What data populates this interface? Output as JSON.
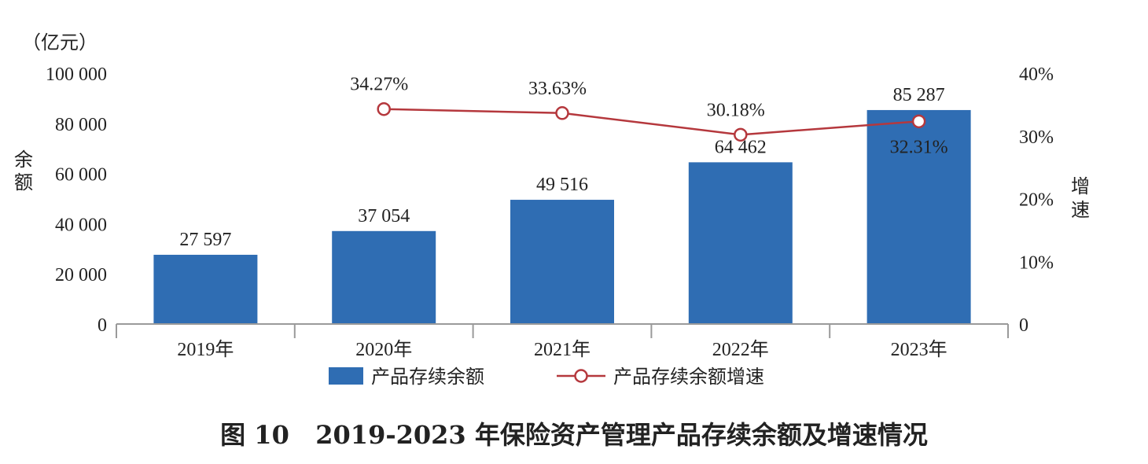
{
  "chart_data": {
    "type": "bar+line",
    "categories": [
      "2019年",
      "2020年",
      "2021年",
      "2022年",
      "2023年"
    ],
    "series": [
      {
        "name": "产品存续余额",
        "type": "bar",
        "axis": "left",
        "color": "#2f6db3",
        "values": [
          27597,
          37054,
          49516,
          64462,
          85287
        ],
        "labels": [
          "27 597",
          "37 054",
          "49 516",
          "64 462",
          "85 287"
        ]
      },
      {
        "name": "产品存续余额增速",
        "type": "line",
        "axis": "right",
        "color": "#b5383d",
        "values": [
          null,
          34.27,
          33.63,
          30.18,
          32.31
        ],
        "labels": [
          "",
          "34.27%",
          "33.63%",
          "30.18%",
          "32.31%"
        ]
      }
    ],
    "y_left": {
      "unit": "（亿元）",
      "label": "余额",
      "range": [
        0,
        100000
      ],
      "ticks": [
        "0",
        "20 000",
        "40 000",
        "60 000",
        "80 000",
        "100 000"
      ]
    },
    "y_right": {
      "label": "增速",
      "range": [
        0,
        40
      ],
      "ticks": [
        "0",
        "10%",
        "20%",
        "30%",
        "40%"
      ]
    },
    "grid": false,
    "legend_position": "bottom"
  },
  "caption": {
    "figure_number": "图 10",
    "title": "2019-2023 年保险资产管理产品存续余额及增速情况"
  }
}
